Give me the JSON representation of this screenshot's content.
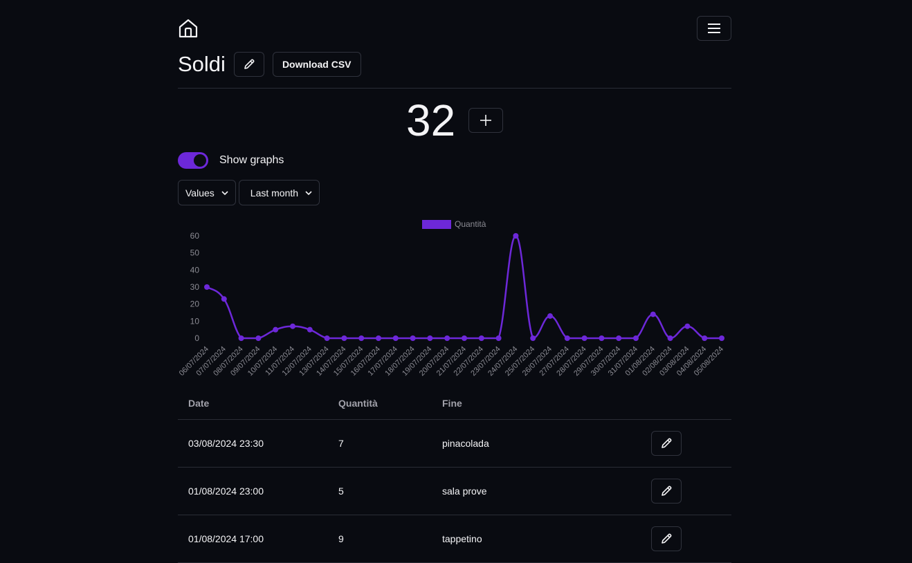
{
  "header": {
    "home_icon": "home-icon",
    "menu_icon": "hamburger-menu-icon"
  },
  "title": "Soldi",
  "buttons": {
    "download_csv": "Download CSV",
    "edit_icon": "pencil-icon",
    "add_icon": "plus-icon"
  },
  "counter": "32",
  "toggle": {
    "label": "Show graphs",
    "on": true,
    "color": "#6d28d9"
  },
  "filters": {
    "type": "Values",
    "range": "Last month"
  },
  "chart_data": {
    "type": "line",
    "series": [
      {
        "name": "Quantità",
        "color": "#6d28d9",
        "values": [
          30,
          23,
          0,
          0,
          5,
          7,
          5,
          0,
          0,
          0,
          0,
          0,
          0,
          0,
          0,
          0,
          0,
          0,
          60,
          0,
          13,
          0,
          0,
          0,
          0,
          0,
          14,
          0,
          7,
          0,
          0
        ]
      }
    ],
    "categories": [
      "06/07/2024",
      "07/07/2024",
      "08/07/2024",
      "09/07/2024",
      "10/07/2024",
      "11/07/2024",
      "12/07/2024",
      "13/07/2024",
      "14/07/2024",
      "15/07/2024",
      "16/07/2024",
      "17/07/2024",
      "18/07/2024",
      "19/07/2024",
      "20/07/2024",
      "21/07/2024",
      "22/07/2024",
      "23/07/2024",
      "24/07/2024",
      "25/07/2024",
      "26/07/2024",
      "27/07/2024",
      "28/07/2024",
      "29/07/2024",
      "30/07/2024",
      "31/07/2024",
      "01/08/2024",
      "02/08/2024",
      "03/08/2024",
      "04/08/2024",
      "05/08/2024"
    ],
    "yticks": [
      "0",
      "10",
      "20",
      "30",
      "40",
      "50",
      "60"
    ],
    "ylim": [
      0,
      60
    ],
    "legend": "top-center"
  },
  "table": {
    "headers": {
      "date": "Date",
      "qty": "Quantità",
      "fine": "Fine"
    },
    "rows": [
      {
        "date": "03/08/2024 23:30",
        "qty": "7",
        "fine": "pinacolada"
      },
      {
        "date": "01/08/2024 23:00",
        "qty": "5",
        "fine": "sala prove"
      },
      {
        "date": "01/08/2024 17:00",
        "qty": "9",
        "fine": "tappetino"
      }
    ]
  }
}
